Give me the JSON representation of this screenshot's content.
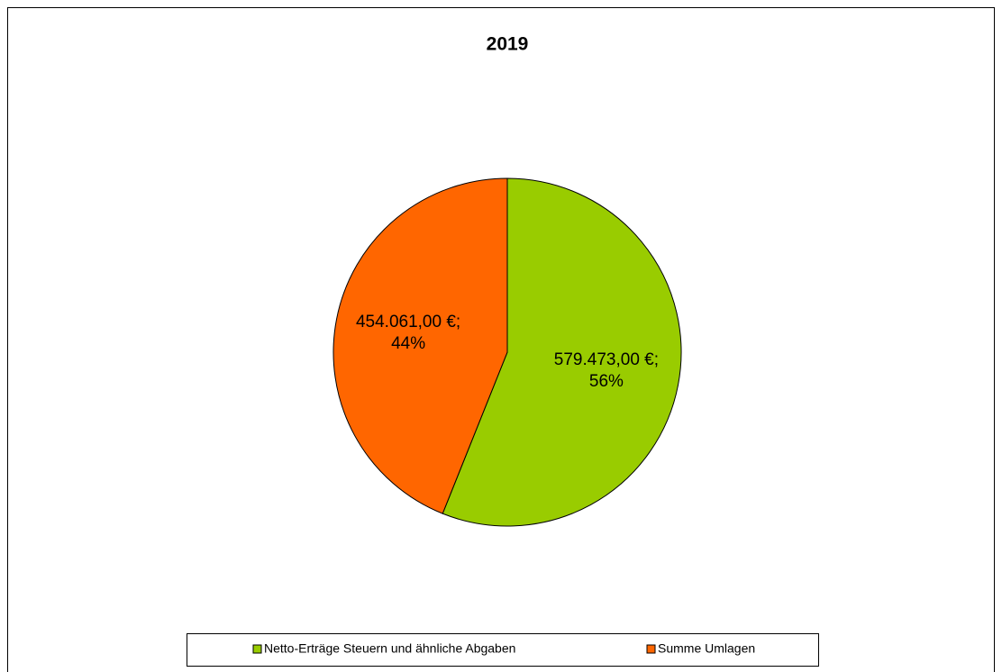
{
  "chart_data": {
    "type": "pie",
    "title": "2019",
    "categories": [
      "Netto-Erträge Steuern und ähnliche Abgaben",
      "Summe Umlagen"
    ],
    "values": [
      579473,
      454061
    ],
    "value_labels": [
      [
        "579.473,00 €;",
        "56%"
      ],
      [
        "454.061,00 €;",
        "44%"
      ]
    ],
    "colors": [
      "#99cc00",
      "#ff6600"
    ],
    "legend": "bottom"
  }
}
